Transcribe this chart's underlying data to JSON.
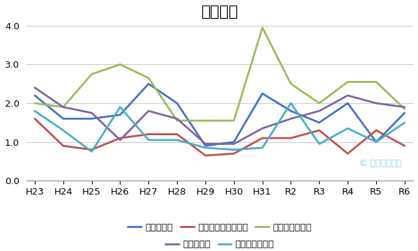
{
  "title": "学力選抜",
  "x_labels": [
    "H23",
    "H24",
    "H25",
    "H26",
    "H27",
    "H28",
    "H29",
    "H30",
    "H31",
    "R2",
    "R3",
    "R4",
    "R5",
    "R6"
  ],
  "series_order": [
    "機械工学科",
    "電子メディア工学科",
    "電子情報工学科",
    "物質工学科",
    "環境都市工学科"
  ],
  "series": {
    "機械工学科": [
      2.2,
      1.6,
      1.6,
      1.7,
      2.5,
      2.0,
      0.9,
      1.0,
      2.25,
      1.8,
      1.5,
      2.0,
      1.0,
      1.75
    ],
    "電子メディア工学科": [
      1.6,
      0.9,
      0.8,
      1.1,
      1.2,
      1.2,
      0.65,
      0.7,
      1.1,
      1.1,
      1.3,
      0.7,
      1.3,
      0.9
    ],
    "電子情報工学科": [
      2.0,
      1.9,
      2.75,
      3.0,
      2.65,
      1.55,
      1.55,
      1.55,
      3.95,
      2.5,
      2.0,
      2.55,
      2.55,
      1.85
    ],
    "物質工学科": [
      2.4,
      1.9,
      1.75,
      1.05,
      1.8,
      1.6,
      0.95,
      0.95,
      1.35,
      1.6,
      1.8,
      2.2,
      2.0,
      1.9
    ],
    "環境都市工学科": [
      1.8,
      1.3,
      0.75,
      1.9,
      1.05,
      1.05,
      0.85,
      0.8,
      0.85,
      2.0,
      0.95,
      1.35,
      1.0,
      1.5
    ]
  },
  "colors": {
    "機械工学科": "#4472c4",
    "電子メディア工学科": "#c0504d",
    "電子情報工学科": "#9bbb59",
    "物質工学科": "#8064a2",
    "環境都市工学科": "#4bacc6"
  },
  "ylim": [
    0.0,
    4.0
  ],
  "yticks": [
    0.0,
    1.0,
    2.0,
    3.0,
    4.0
  ],
  "background_color": "#ffffff",
  "watermark": "© 高専受験計画",
  "title_fontsize": 16,
  "legend_fontsize": 9.5,
  "tick_fontsize": 9.5,
  "linewidth": 2.0
}
